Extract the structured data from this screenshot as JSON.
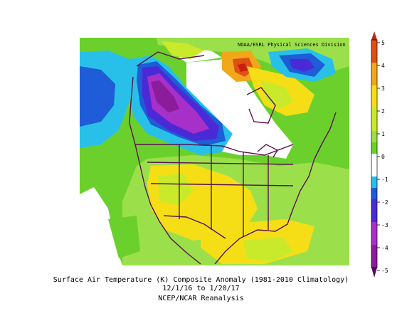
{
  "map": {
    "credit": "NOAA/ESRL Physical Sciences Division",
    "colors": {
      "-5": "#5a0a5e",
      "-4": "#8b1c9a",
      "-3": "#a630c8",
      "-2": "#4a2ad6",
      "-1": "#1e5cd8",
      "-0.5": "#28c0e8",
      "0": "#ffffff",
      "0.5": "#9be04a",
      "1": "#6cd02c",
      "2": "#c9ea2a",
      "3": "#f6de16",
      "4": "#f0a81a",
      "5": "#e05012",
      "6": "#c82010"
    }
  },
  "colorbar": {
    "ticks": [
      "5",
      "4",
      "3",
      "2",
      "1",
      "0",
      "-1",
      "-2",
      "-3",
      "-4",
      "-5"
    ]
  },
  "caption": {
    "line1": "Surface Air Temperature (K) Composite Anomaly (1981-2010 Climatology)",
    "line2": "12/1/16  to 1/20/17",
    "line3": "NCEP/NCAR Reanalysis"
  }
}
